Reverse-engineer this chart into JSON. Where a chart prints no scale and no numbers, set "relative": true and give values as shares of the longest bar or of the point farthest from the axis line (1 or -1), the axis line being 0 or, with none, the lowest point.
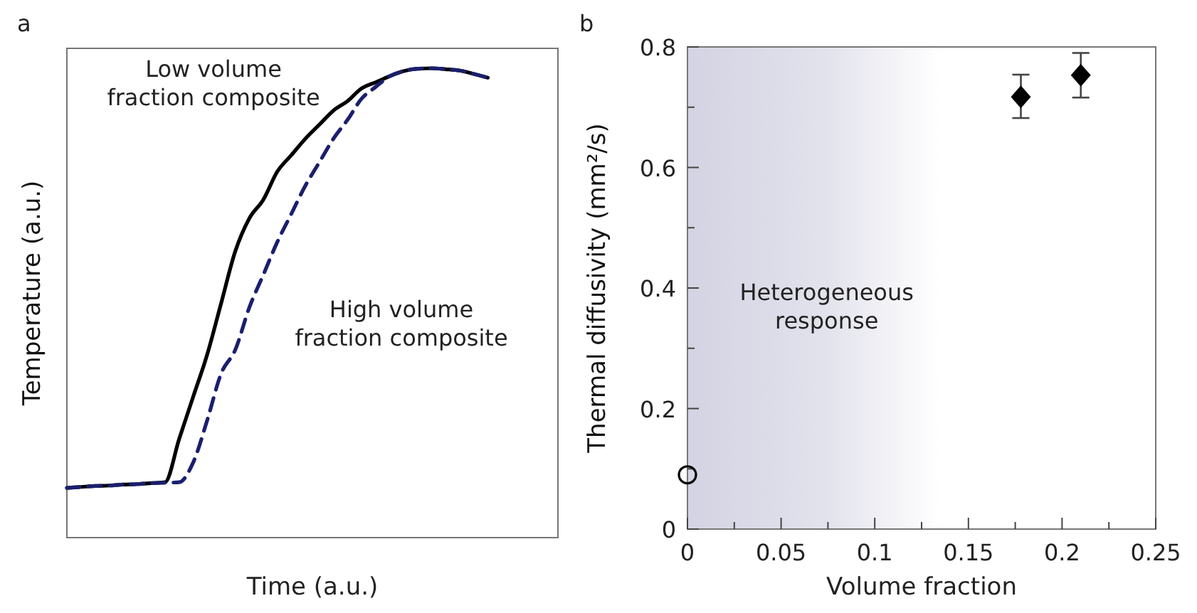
{
  "chart_data": [
    {
      "type": "line",
      "title": "a",
      "xlabel": "Time (a.u.)",
      "ylabel": "Temperature (a.u.)",
      "relative": true,
      "marker": "none",
      "categories": [
        null,
        null,
        null,
        null,
        null,
        null,
        null,
        null,
        null,
        null,
        null,
        null,
        null,
        null,
        null,
        null,
        null,
        null,
        null,
        null,
        null,
        null,
        null,
        null,
        null,
        null,
        null,
        null,
        null,
        null,
        null,
        null,
        null,
        null,
        null,
        null
      ],
      "series": [
        {
          "color": "#000000",
          "line_style": "solid",
          "values": [
            0.106,
            0.108,
            0.11,
            0.111,
            0.113,
            0.114,
            0.116,
            0.118,
            0.21,
            0.3,
            0.39,
            0.5,
            0.61,
            0.68,
            0.72,
            0.78,
            0.815,
            0.85,
            0.88,
            0.91,
            0.93,
            0.957,
            0.97,
            0.983,
            0.994,
            0.999,
            1.0,
            0.998,
            0.995,
            0.988,
            0.98,
            null,
            null,
            null,
            null,
            null
          ]
        },
        {
          "color": "#1a1f6e",
          "line_style": "dashed",
          "values": [
            0.106,
            0.108,
            0.11,
            0.111,
            0.113,
            0.114,
            0.116,
            0.117,
            0.118,
            0.16,
            0.25,
            0.35,
            0.4,
            0.49,
            0.56,
            0.63,
            0.69,
            0.75,
            0.8,
            0.85,
            0.89,
            0.935,
            0.96,
            0.983,
            0.994,
            0.999,
            1.0,
            0.998,
            0.995,
            0.988,
            0.98,
            null,
            null,
            null,
            null,
            null
          ]
        }
      ],
      "annotations": [
        "Low volume\nfraction composite",
        "High volume\nfraction composite"
      ]
    },
    {
      "type": "scatter",
      "title": "b",
      "xlabel": "Volume fraction",
      "ylabel": "Thermal diffusivity (mm²/s)",
      "xlim": [
        0,
        0.25
      ],
      "ylim": [
        0,
        0.8
      ],
      "xticks": [
        0,
        {
          "value": 0.025,
          "label": null
        },
        0.05,
        {
          "value": 0.075,
          "label": null
        },
        0.1,
        {
          "value": 0.125,
          "label": null
        },
        0.15,
        {
          "value": 0.175,
          "label": null
        },
        0.2,
        {
          "value": 0.225,
          "label": null
        },
        0.25
      ],
      "yticks": [
        0,
        {
          "value": 0.1,
          "label": null
        },
        0.2,
        {
          "value": 0.3,
          "label": null
        },
        0.4,
        {
          "value": 0.5,
          "label": null
        },
        0.6,
        {
          "value": 0.7,
          "label": null
        },
        0.8
      ],
      "bands": [
        {
          "axis": "x",
          "from": 0,
          "to": 0.135,
          "label": "Heterogeneous\nresponse",
          "color": "#d3d3e3"
        }
      ],
      "series": [
        {
          "color": "#000000",
          "marker": "circle",
          "x": [
            0
          ],
          "values": [
            0.09
          ]
        },
        {
          "color": "#000000",
          "marker": "diamond",
          "x": [
            0.178,
            0.21
          ],
          "values": [
            0.717,
            0.753
          ],
          "errors": [
            [
              0.682,
              0.754
            ],
            [
              0.716,
              0.79
            ]
          ]
        }
      ]
    }
  ]
}
